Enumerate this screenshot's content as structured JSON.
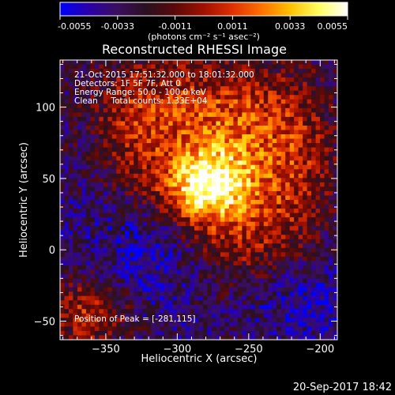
{
  "colorbar": {
    "ticks": [
      "-0.0055",
      "-0.0033",
      "-0.0011",
      "0.0011",
      "0.0033",
      "0.0055"
    ],
    "units_label": "(photons cm⁻² s⁻¹ asec⁻²)",
    "colormap": [
      "#0000ff",
      "#2a00a8",
      "#3a0f5e",
      "#2a1020",
      "#5a0a0a",
      "#a01000",
      "#e03000",
      "#ff7000",
      "#ffc000",
      "#ffff60",
      "#ffffff"
    ]
  },
  "chart_data": {
    "type": "heatmap",
    "title": "Reconstructed RHESSI Image",
    "xlabel": "Heliocentric X (arcsec)",
    "ylabel": "Heliocentric Y (arcsec)",
    "xlim": [
      -382,
      -188
    ],
    "ylim": [
      -63,
      133
    ],
    "xticks": [
      -350,
      -300,
      -250,
      -200
    ],
    "yticks": [
      -50,
      0,
      50,
      100
    ],
    "color_range": [
      -0.0055,
      0.0055
    ],
    "peak": [
      -281,
      115
    ],
    "info_lines": [
      "21-Oct-2015 17:51:32.000 to 18:01:32.000",
      "Detectors: 1F 5F 7F, Att 0",
      "Energy Range: 50.0 - 100.0 keV",
      "Clean     Total counts: 1.33E+04"
    ],
    "peak_label": "Position of Peak = [-281,115]"
  },
  "footer_date": "20-Sep-2017 18:42"
}
